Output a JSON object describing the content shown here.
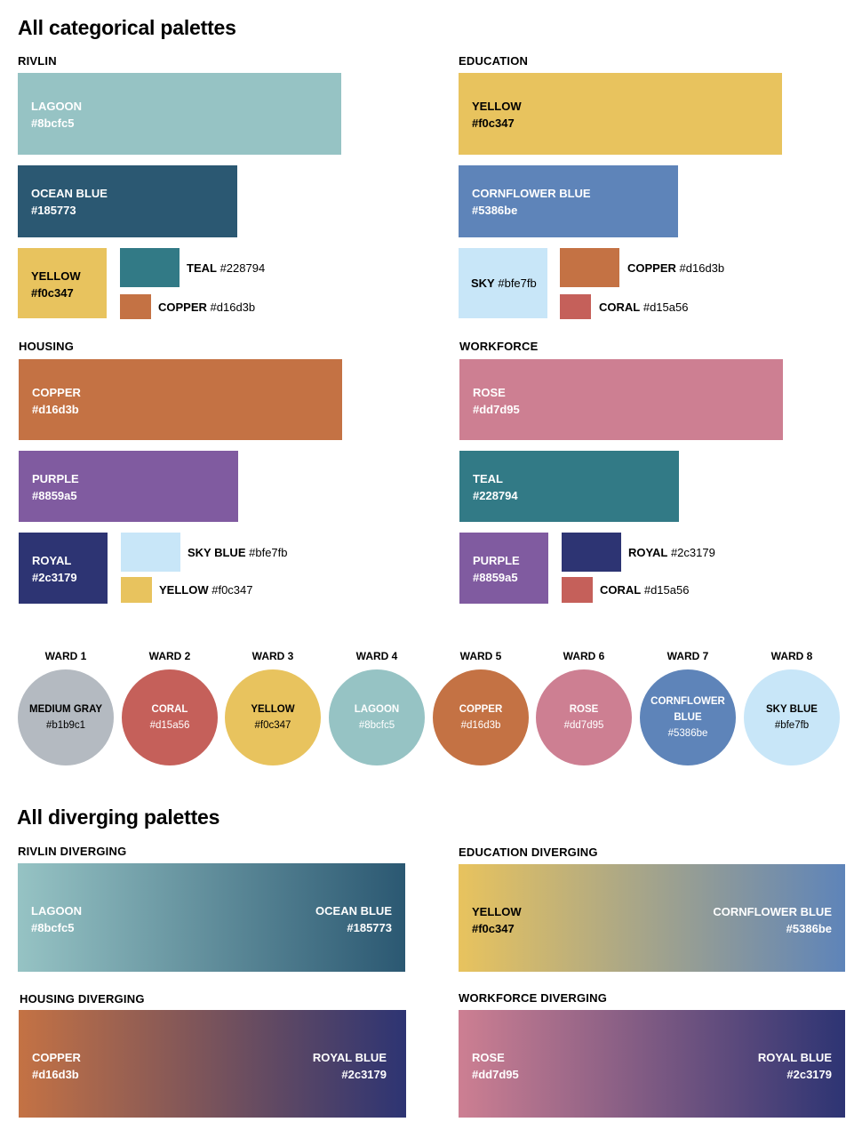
{
  "headings": {
    "categorical": "All categorical palettes",
    "diverging": "All diverging palettes"
  },
  "palettes": {
    "rivlin": {
      "label": "RIVLIN",
      "big1": {
        "name": "LAGOON",
        "hex": "#8bcfc5",
        "color": "#96c3c4"
      },
      "big2": {
        "name": "OCEAN BLUE",
        "hex": "#185773",
        "color": "#2b5872"
      },
      "small": {
        "name": "YELLOW",
        "hex": "#f0c347",
        "color": "#e8c35e"
      },
      "row1": {
        "name": "TEAL",
        "hex": "#228794",
        "color": "#327a86"
      },
      "row2": {
        "name": "COPPER",
        "hex": "#d16d3b",
        "color": "#c47244"
      }
    },
    "education": {
      "label": "EDUCATION",
      "big1": {
        "name": "YELLOW",
        "hex": "#f0c347",
        "color": "#e8c35e"
      },
      "big2": {
        "name": "CORNFLOWER BLUE",
        "hex": "#5386be",
        "color": "#5e84b9"
      },
      "small": {
        "name": "SKY",
        "hex": "#bfe7fb",
        "color": "#c8e6f8"
      },
      "row1": {
        "name": "COPPER",
        "hex": "#d16d3b",
        "color": "#c47244"
      },
      "row2": {
        "name": "CORAL",
        "hex": "#d15a56",
        "color": "#c5605a"
      }
    },
    "housing": {
      "label": "HOUSING",
      "big1": {
        "name": "COPPER",
        "hex": "#d16d3b",
        "color": "#c47244"
      },
      "big2": {
        "name": "PURPLE",
        "hex": "#8859a5",
        "color": "#805ba0"
      },
      "small": {
        "name": "ROYAL",
        "hex": "#2c3179",
        "color": "#2d3473"
      },
      "row1": {
        "name": "SKY BLUE",
        "hex": "#bfe7fb",
        "color": "#c8e6f8"
      },
      "row2": {
        "name": "YELLOW",
        "hex": "#f0c347",
        "color": "#e8c35e"
      }
    },
    "workforce": {
      "label": "WORKFORCE",
      "big1": {
        "name": "ROSE",
        "hex": "#dd7d95",
        "color": "#cd7f92"
      },
      "big2": {
        "name": "TEAL",
        "hex": "#228794",
        "color": "#327a86"
      },
      "small": {
        "name": "PURPLE",
        "hex": "#8859a5",
        "color": "#805ba0"
      },
      "row1": {
        "name": "ROYAL",
        "hex": "#2c3179",
        "color": "#2d3473"
      },
      "row2": {
        "name": "CORAL",
        "hex": "#d15a56",
        "color": "#c5605a"
      }
    }
  },
  "wards": [
    {
      "label": "WARD 1",
      "name": "MEDIUM GRAY",
      "hex": "#b1b9c1",
      "color": "#b4bac1",
      "text": "dark"
    },
    {
      "label": "WARD 2",
      "name": "CORAL",
      "hex": "#d15a56",
      "color": "#c5605a",
      "text": "white"
    },
    {
      "label": "WARD 3",
      "name": "YELLOW",
      "hex": "#f0c347",
      "color": "#e8c35e",
      "text": "dark"
    },
    {
      "label": "WARD 4",
      "name": "LAGOON",
      "hex": "#8bcfc5",
      "color": "#96c3c4",
      "text": "white"
    },
    {
      "label": "WARD 5",
      "name": "COPPER",
      "hex": "#d16d3b",
      "color": "#c47244",
      "text": "white"
    },
    {
      "label": "WARD 6",
      "name": "ROSE",
      "hex": "#dd7d95",
      "color": "#cd7f92",
      "text": "white"
    },
    {
      "label": "WARD 7",
      "name": "CORNFLOWER\nBLUE",
      "hex": "#5386be",
      "color": "#5e84b9",
      "text": "white"
    },
    {
      "label": "WARD 8",
      "name": "SKY BLUE",
      "hex": "#bfe7fb",
      "color": "#c8e6f8",
      "text": "dark"
    }
  ],
  "diverging": {
    "rivlin": {
      "label": "RIVLIN DIVERGING",
      "left": {
        "name": "LAGOON",
        "hex": "#8bcfc5",
        "color": "#96c3c4"
      },
      "right": {
        "name": "OCEAN BLUE",
        "hex": "#185773",
        "color": "#2b5872"
      }
    },
    "education": {
      "label": "EDUCATION DIVERGING",
      "left": {
        "name": "YELLOW",
        "hex": "#f0c347",
        "color": "#e8c35e"
      },
      "right": {
        "name": "CORNFLOWER BLUE",
        "hex": "#5386be",
        "color": "#5e84b9"
      }
    },
    "housing": {
      "label": "HOUSING DIVERGING",
      "left": {
        "name": "COPPER",
        "hex": "#d16d3b",
        "color": "#c47244"
      },
      "right": {
        "name": "ROYAL BLUE",
        "hex": "#2c3179",
        "color": "#2d3473"
      }
    },
    "workforce": {
      "label": "WORKFORCE DIVERGING",
      "left": {
        "name": "ROSE",
        "hex": "#dd7d95",
        "color": "#cd7f92"
      },
      "right": {
        "name": "ROYAL BLUE",
        "hex": "#2c3179",
        "color": "#2d3473"
      }
    }
  }
}
